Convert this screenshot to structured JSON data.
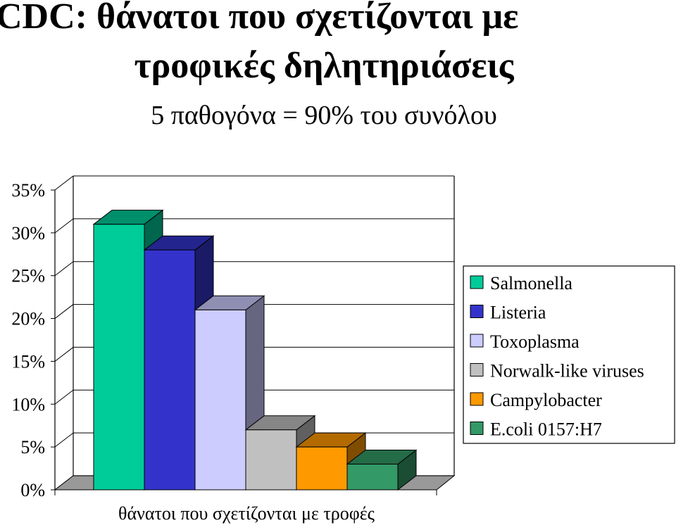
{
  "title": {
    "line1": "CDC: θάνατοι που σχετίζονται με",
    "line2": "τροφικές δηλητηριάσεις",
    "line3": "5 παθογόνα = 90% του συνόλου"
  },
  "chart_data": {
    "type": "bar",
    "xlabel": "θάνατοι που σχετίζονται με τροφές",
    "ylim": [
      0,
      35
    ],
    "yticks": [
      "0%",
      "5%",
      "10%",
      "15%",
      "20%",
      "25%",
      "30%",
      "35%"
    ],
    "grid": true,
    "legend_position": "right",
    "series": [
      {
        "name": "Salmonella",
        "value": 31,
        "color": "#00cc99"
      },
      {
        "name": "Listeria",
        "value": 28,
        "color": "#3333cc"
      },
      {
        "name": "Toxoplasma",
        "value": 21,
        "color": "#ccccff"
      },
      {
        "name": "Norwalk-like viruses",
        "value": 7,
        "color": "#c0c0c0"
      },
      {
        "name": "Campylobacter",
        "value": 5,
        "color": "#ff9900"
      },
      {
        "name": "E.coli 0157:H7",
        "value": 3,
        "color": "#339966"
      }
    ]
  }
}
